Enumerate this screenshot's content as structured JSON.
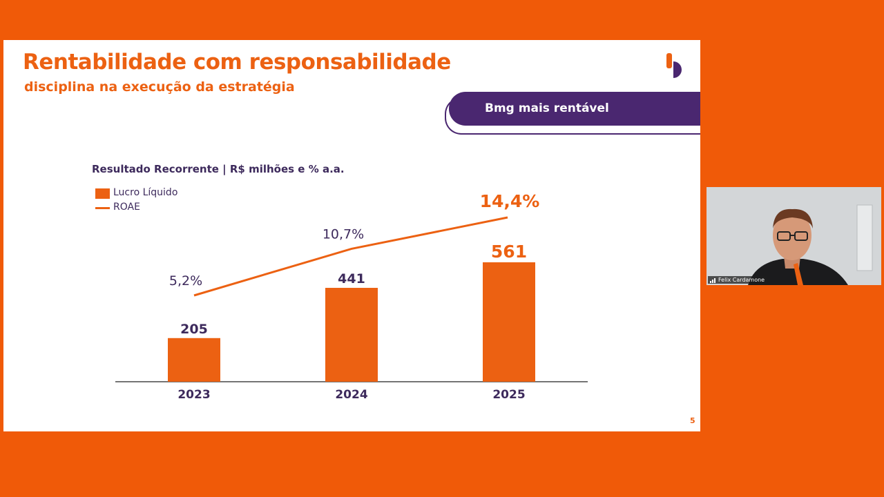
{
  "slide": {
    "title": "Rentabilidade com responsabilidade",
    "subtitle": "disciplina na execução da estratégia",
    "banner": "Bmg mais rentável",
    "page_number": "5",
    "colors": {
      "orange": "#ec6112",
      "purple": "#4a2770",
      "text": "#3d2a5c"
    }
  },
  "chart_data": {
    "type": "bar",
    "title": "Resultado Recorrente | R$ milhões e % a.a.",
    "categories": [
      "2023",
      "2024",
      "2025"
    ],
    "series": [
      {
        "name": "Lucro Líquido",
        "type": "bar",
        "values": [
          205,
          441,
          561
        ],
        "labels": [
          "205",
          "441",
          "561"
        ]
      },
      {
        "name": "ROAE",
        "type": "line",
        "values": [
          5.2,
          10.7,
          14.4
        ],
        "labels": [
          "5,2%",
          "10,7%",
          "14,4%"
        ]
      }
    ],
    "legend": "top-left",
    "grid": false
  },
  "video": {
    "participant": "Felix Cardamone",
    "icon": "signal-bars-icon"
  }
}
